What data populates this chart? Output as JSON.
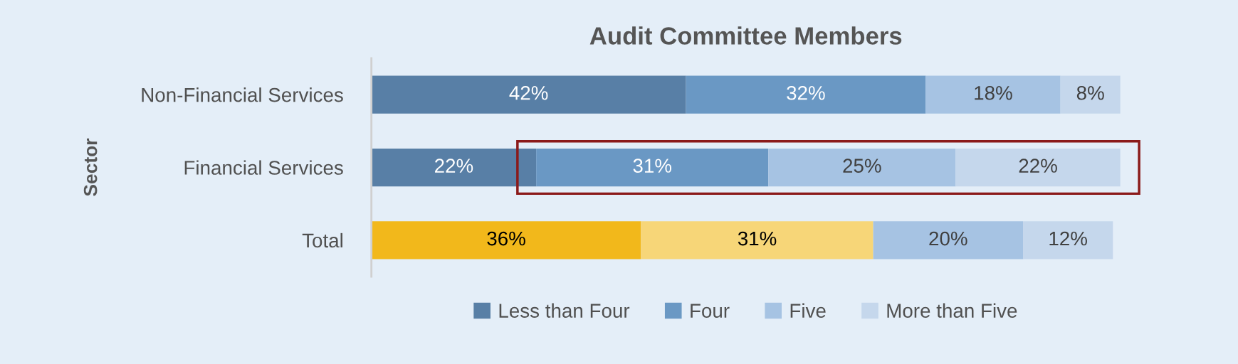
{
  "chart_data": {
    "type": "bar",
    "orientation": "horizontal",
    "stacked": true,
    "title": "Audit Committee Members",
    "ylabel": "Sector",
    "categories": [
      "Non-Financial Services",
      "Financial Services",
      "Total"
    ],
    "series": [
      {
        "name": "Less than Four",
        "color": "#587fa6",
        "colors": [
          "#587fa6",
          "#587fa6",
          "#f2b81b"
        ],
        "values": [
          42,
          22,
          36
        ],
        "value_labels": [
          "42%",
          "22%",
          "36%"
        ]
      },
      {
        "name": "Four",
        "color": "#6a98c4",
        "colors": [
          "#6a98c4",
          "#6a98c4",
          "#f7d678"
        ],
        "values": [
          32,
          31,
          31
        ],
        "value_labels": [
          "32%",
          "31%",
          "31%"
        ]
      },
      {
        "name": "Five",
        "color": "#a6c3e3",
        "colors": [
          "#a6c3e3",
          "#a6c3e3",
          "#a6c3e3"
        ],
        "values": [
          18,
          25,
          20
        ],
        "value_labels": [
          "18%",
          "25%",
          "20%"
        ]
      },
      {
        "name": "More than Five",
        "color": "#c5d7ec",
        "colors": [
          "#c5d7ec",
          "#c5d7ec",
          "#c5d7ec"
        ],
        "values": [
          8,
          22,
          12
        ],
        "value_labels": [
          "8%",
          "22%",
          "12%"
        ]
      }
    ],
    "legend": "bottom",
    "grid": false,
    "tick_labels": "y"
  }
}
